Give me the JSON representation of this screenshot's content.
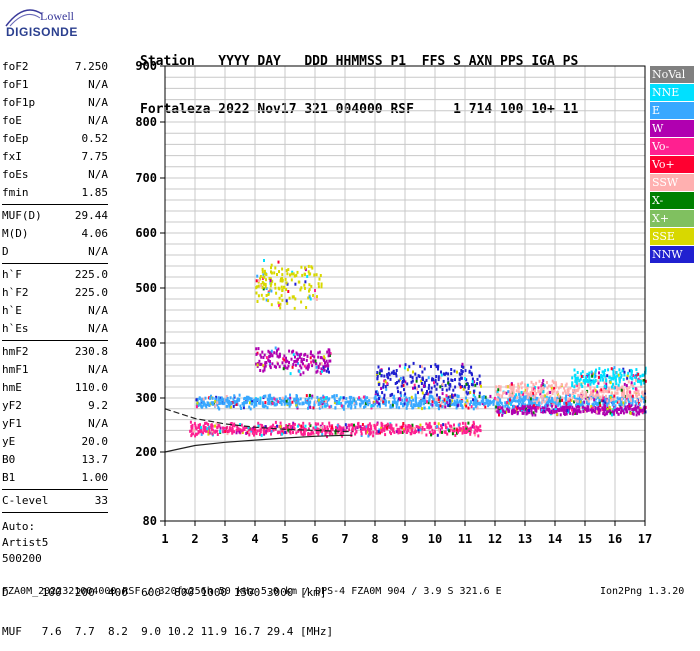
{
  "logo": {
    "line1": "Lowell",
    "line2": "DIGISONDE"
  },
  "header": {
    "line1": "Station   YYYY DAY   DDD HHMMSS P1  FFS S AXN PPS IGA PS",
    "line2": "Fortaleza 2022 Nov17 321 004000 RSF     1 714 100 10+ 11"
  },
  "params": {
    "group1": [
      {
        "label": "foF2",
        "value": "7.250"
      },
      {
        "label": "foF1",
        "value": "N/A"
      },
      {
        "label": "foF1p",
        "value": "N/A"
      },
      {
        "label": "foE",
        "value": "N/A"
      },
      {
        "label": "foEp",
        "value": "0.52"
      },
      {
        "label": "fxI",
        "value": "7.75"
      },
      {
        "label": "foEs",
        "value": "N/A"
      },
      {
        "label": "fmin",
        "value": "1.85"
      }
    ],
    "group2": [
      {
        "label": "MUF(D)",
        "value": "29.44"
      },
      {
        "label": "M(D)",
        "value": "4.06"
      },
      {
        "label": "D",
        "value": "N/A"
      }
    ],
    "group3": [
      {
        "label": "h`F",
        "value": "225.0"
      },
      {
        "label": "h`F2",
        "value": "225.0"
      },
      {
        "label": "h`E",
        "value": "N/A"
      },
      {
        "label": "h`Es",
        "value": "N/A"
      }
    ],
    "group4": [
      {
        "label": "hmF2",
        "value": "230.8"
      },
      {
        "label": "hmF1",
        "value": "N/A"
      },
      {
        "label": "hmE",
        "value": "110.0"
      },
      {
        "label": "yF2",
        "value": "9.2"
      },
      {
        "label": "yF1",
        "value": "N/A"
      },
      {
        "label": "yE",
        "value": "20.0"
      },
      {
        "label": "B0",
        "value": "13.7"
      },
      {
        "label": "B1",
        "value": "1.00"
      }
    ],
    "group5": [
      {
        "label": "C-level",
        "value": "33"
      }
    ],
    "auto": [
      "Auto:",
      "Artist5",
      "500200"
    ]
  },
  "chart_data": {
    "type": "scatter",
    "x_ticks": [
      "1",
      "2",
      "3",
      "4",
      "5",
      "6",
      "7",
      "8",
      "9",
      "10",
      "11",
      "12",
      "13",
      "14",
      "15",
      "16",
      "17"
    ],
    "y_ticks": [
      "80",
      "200",
      "300",
      "400",
      "500",
      "600",
      "700",
      "800",
      "900"
    ],
    "xlim": [
      1,
      17
    ],
    "y_tick_values": [
      80,
      200,
      300,
      400,
      500,
      600,
      700,
      800,
      900
    ],
    "grid": true,
    "legend_position": "right",
    "legend": [
      {
        "name": "NoVal",
        "color": "#808080"
      },
      {
        "name": "NNE",
        "color": "#00e0ff"
      },
      {
        "name": "E",
        "color": "#38a8ff"
      },
      {
        "name": "W",
        "color": "#b000b0"
      },
      {
        "name": "Vo-",
        "color": "#ff2090"
      },
      {
        "name": "Vo+",
        "color": "#ff0030"
      },
      {
        "name": "SSW",
        "color": "#ffb0b0"
      },
      {
        "name": "X-",
        "color": "#008000"
      },
      {
        "name": "X+",
        "color": "#80c060"
      },
      {
        "name": "SSE",
        "color": "#d8d800"
      },
      {
        "name": "NNW",
        "color": "#2020d0"
      }
    ],
    "traces": [
      {
        "series": "E",
        "f_range": [
          2.0,
          17.0
        ],
        "h_center": 295,
        "h_spread": 14
      },
      {
        "series": "Vo-",
        "f_range": [
          1.8,
          11.5
        ],
        "h_center": 245,
        "h_spread": 14
      },
      {
        "series": "W",
        "f_range": [
          12.0,
          17.0
        ],
        "h_center": 280,
        "h_spread": 10
      },
      {
        "series": "W",
        "f_range": [
          4.0,
          6.5
        ],
        "h_center": 370,
        "h_spread": 28
      },
      {
        "series": "SSE",
        "f_range": [
          4.0,
          6.2
        ],
        "h_center": 510,
        "h_spread": 50
      },
      {
        "series": "SSW",
        "f_range": [
          12.0,
          17.0
        ],
        "h_center": 315,
        "h_spread": 22
      },
      {
        "series": "NNE",
        "f_range": [
          14.5,
          17.0
        ],
        "h_center": 340,
        "h_spread": 20
      },
      {
        "series": "NNW",
        "f_range": [
          8.0,
          11.5
        ],
        "h_center": 330,
        "h_spread": 40
      }
    ],
    "profile_curves": [
      {
        "name": "virtual-height",
        "f": [
          1.0,
          2.0,
          3.0,
          4.0,
          5.0,
          6.0,
          7.0,
          7.25
        ],
        "h": [
          280,
          262,
          252,
          246,
          242,
          240,
          238,
          238
        ]
      },
      {
        "name": "true-height",
        "f": [
          1.0,
          2.0,
          3.0,
          4.0,
          5.0,
          6.0,
          7.0,
          7.25
        ],
        "h": [
          200,
          212,
          218,
          222,
          226,
          229,
          231,
          231
        ]
      }
    ]
  },
  "freq_table": {
    "d_row": "D     100  200  400  600  800 1000 1500 3000 [km]",
    "muf_row": "MUF   7.6  7.7  8.2  9.0 10.2 11.9 16.7 29.4 [MHz]"
  },
  "footer": {
    "info": "FZA0M_2022321004000.RSF / 320fx256h 50 kHz 5.0 km / DPS-4 FZA0M 904 / 3.9 S 321.6 E",
    "version": "Ion2Png 1.3.20"
  }
}
